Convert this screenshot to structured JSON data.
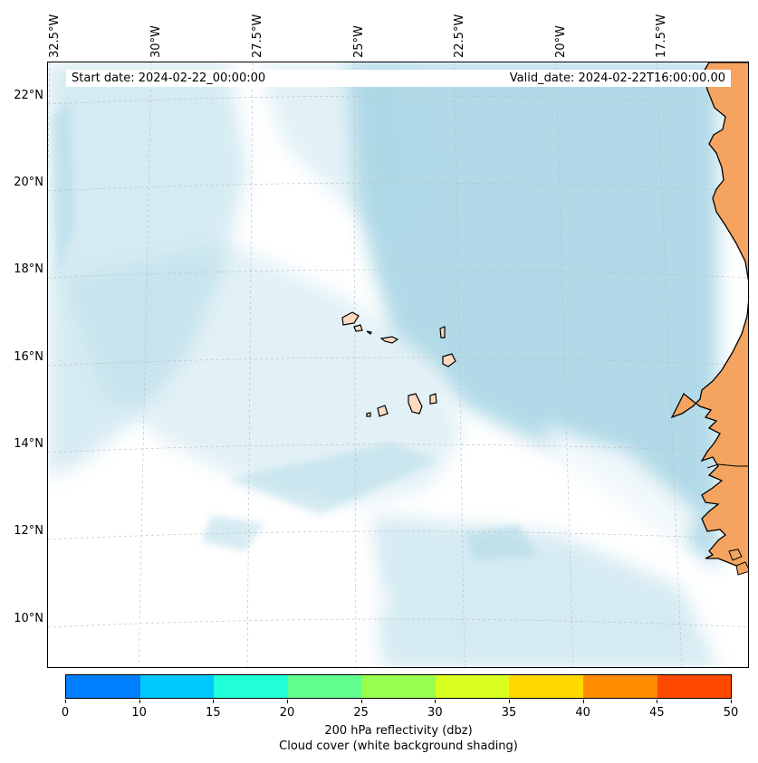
{
  "map": {
    "header_left": "Start date: 2024-02-22_00:00:00",
    "header_right": "Valid_date: 2024-02-22T16:00:00.00",
    "longitude_labels": [
      "32.5°W",
      "30°W",
      "27.5°W",
      "25°W",
      "22.5°W",
      "20°W",
      "17.5°W"
    ],
    "latitude_labels": [
      "22°N",
      "20°N",
      "18°N",
      "16°N",
      "14°N",
      "12°N",
      "10°N"
    ],
    "colors": {
      "ocean_cloud": "#add8e6",
      "land": "#f4a460",
      "islands": "#fcd9c0",
      "coastline": "#000000",
      "gridline": "#bbbbbb"
    }
  },
  "colorbar": {
    "ticks": [
      "0",
      "10",
      "15",
      "20",
      "25",
      "30",
      "35",
      "40",
      "45",
      "50"
    ],
    "colors": [
      "#0080ff",
      "#00c8ff",
      "#20ffd8",
      "#60ff90",
      "#98ff50",
      "#d8ff20",
      "#ffd800",
      "#ff8c00",
      "#ff4800"
    ],
    "label_line1": "200 hPa reflectivity (dbz)",
    "label_line2": "Cloud cover (white background shading)"
  }
}
